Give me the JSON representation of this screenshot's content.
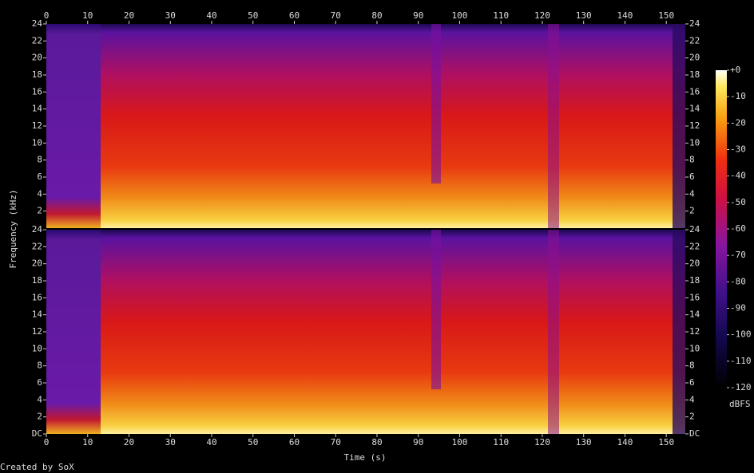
{
  "chart_data": {
    "type": "spectrogram",
    "x_label": "Time (s)",
    "y_label": "Frequency (kHz)",
    "xlim": [
      0,
      154.6
    ],
    "xticks": [
      0,
      10,
      20,
      30,
      40,
      50,
      60,
      70,
      80,
      90,
      100,
      110,
      120,
      130,
      140,
      150
    ],
    "panels": [
      {
        "ylim": [
          0,
          24
        ],
        "yticks": [
          2,
          4,
          6,
          8,
          10,
          12,
          14,
          16,
          18,
          20,
          22,
          24
        ]
      },
      {
        "ylim": [
          0,
          24
        ],
        "yticks": [
          {
            "value": 0,
            "label": "DC"
          },
          2,
          4,
          6,
          8,
          10,
          12,
          14,
          16,
          18,
          20,
          22,
          24
        ]
      }
    ],
    "colorbar": {
      "label": "dBFS",
      "lim": [
        -120,
        0
      ],
      "ticks": [
        {
          "value": 0,
          "label": "+0"
        },
        -10,
        -20,
        -30,
        -40,
        -50,
        -60,
        -70,
        -80,
        -90,
        -100,
        -110,
        -120
      ]
    },
    "footer": "Created by SoX"
  }
}
